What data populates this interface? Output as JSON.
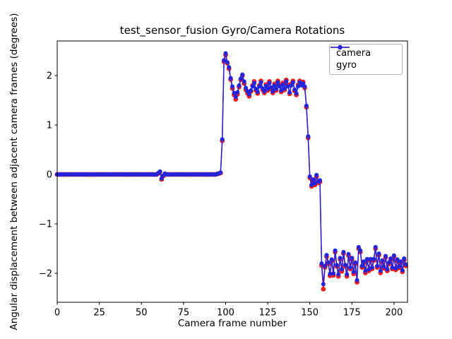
{
  "figure": {
    "title": "test_sensor_fusion Gyro/Camera Rotations",
    "xlabel": "Camera frame number",
    "ylabel": "Angular displacement between adjacent camera frames (degrees)"
  },
  "legend": {
    "items": [
      {
        "label": "camera",
        "color": "#f02020"
      },
      {
        "label": "gyro",
        "color": "#2424dc"
      }
    ]
  },
  "chart_data": {
    "type": "line",
    "title": "test_sensor_fusion Gyro/Camera Rotations",
    "xlabel": "Camera frame number",
    "ylabel": "Angular displacement between adjacent camera frames (degrees)",
    "grid": false,
    "legend_position": "upper right",
    "marker": "circle",
    "x_start": 0,
    "x_step": 1,
    "xlim": [
      0,
      208
    ],
    "ylim": [
      -2.586,
      2.7
    ],
    "xticks": [
      0,
      25,
      50,
      75,
      100,
      125,
      150,
      175,
      200
    ],
    "xtick_labels": [
      "0",
      "25",
      "50",
      "75",
      "100",
      "125",
      "150",
      "175",
      "200"
    ],
    "yticks": [
      -2,
      -1,
      0,
      1,
      2
    ],
    "ytick_labels": [
      "−2",
      "−1",
      "0",
      "1",
      "2"
    ],
    "series": [
      {
        "name": "camera",
        "color": "#f02020",
        "values": [
          0,
          0,
          0,
          0,
          0,
          0,
          0,
          0,
          0,
          0,
          0,
          0,
          0,
          0,
          0,
          0,
          0,
          0,
          0,
          0,
          0,
          0,
          0,
          0,
          0,
          0,
          0,
          0,
          0,
          0,
          0,
          0,
          0,
          0,
          0,
          0,
          0,
          0,
          0,
          0,
          0,
          0,
          0,
          0,
          0,
          0,
          0,
          0,
          0,
          0,
          0,
          0,
          0,
          0,
          0,
          0,
          0,
          0,
          0,
          0,
          0.02,
          0.05,
          -0.1,
          -0.03,
          0.01,
          0,
          0,
          0,
          0,
          0,
          0,
          0,
          0,
          0,
          0,
          0,
          0,
          0,
          0,
          0,
          0,
          0,
          0,
          0,
          0,
          0,
          0,
          0,
          0,
          0,
          0,
          0,
          0,
          0,
          0,
          0.01,
          0.02,
          0.03,
          0.68,
          2.28,
          2.42,
          2.25,
          2.14,
          1.92,
          1.74,
          1.61,
          1.52,
          1.62,
          1.77,
          1.92,
          2.0,
          1.84,
          1.71,
          1.64,
          1.58,
          1.68,
          1.8,
          1.88,
          1.7,
          1.64,
          1.8,
          1.89,
          1.71,
          1.65,
          1.82,
          1.7,
          1.88,
          1.73,
          1.65,
          1.83,
          1.7,
          1.89,
          1.81,
          1.67,
          1.85,
          1.71,
          1.91,
          1.81,
          1.63,
          1.83,
          1.89,
          1.69,
          1.61,
          1.81,
          1.89,
          1.83,
          1.87,
          1.75,
          1.36,
          0.74,
          -0.07,
          -0.24,
          -0.13,
          -0.21,
          -0.04,
          -0.17,
          -0.15,
          -1.84,
          -2.32,
          -1.88,
          -1.66,
          -1.81,
          -2.05,
          -1.75,
          -2.04,
          -1.57,
          -1.86,
          -2.06,
          -1.72,
          -1.96,
          -1.6,
          -1.86,
          -2.06,
          -1.64,
          -1.91,
          -1.72,
          -2.01,
          -1.81,
          -2.18,
          -1.5,
          -1.57,
          -1.88,
          -1.79,
          -1.99,
          -1.74,
          -1.95,
          -1.74,
          -1.91,
          -1.74,
          -1.5,
          -1.88,
          -1.63,
          -1.99,
          -1.77,
          -1.9,
          -1.68,
          -1.95,
          -1.81,
          -1.73,
          -1.91,
          -1.67,
          -1.93,
          -1.75,
          -1.89,
          -1.79,
          -1.97,
          -1.73,
          -1.85
        ]
      },
      {
        "name": "gyro",
        "color": "#2424dc",
        "values": [
          0,
          0,
          0,
          0,
          0,
          0,
          0,
          0,
          0,
          0,
          0,
          0,
          0,
          0,
          0,
          0,
          0,
          0,
          0,
          0,
          0,
          0,
          0,
          0,
          0,
          0,
          0,
          0,
          0,
          0,
          0,
          0,
          0,
          0,
          0,
          0,
          0,
          0,
          0,
          0,
          0,
          0,
          0,
          0,
          0,
          0,
          0,
          0,
          0,
          0,
          0,
          0,
          0,
          0,
          0,
          0,
          0,
          0,
          0,
          0,
          0.03,
          0.06,
          -0.08,
          -0.02,
          0.02,
          0,
          0,
          0,
          0,
          0,
          0,
          0,
          0,
          0,
          0,
          0,
          0,
          0,
          0,
          0,
          0,
          0,
          0,
          0,
          0,
          0,
          0,
          0,
          0,
          0,
          0,
          0,
          0,
          0,
          0,
          0.01,
          0.02,
          0.04,
          0.71,
          2.31,
          2.45,
          2.27,
          2.17,
          1.95,
          1.78,
          1.65,
          1.57,
          1.66,
          1.8,
          1.94,
          2.02,
          1.88,
          1.75,
          1.68,
          1.62,
          1.7,
          1.78,
          1.85,
          1.73,
          1.67,
          1.78,
          1.86,
          1.74,
          1.68,
          1.79,
          1.73,
          1.85,
          1.76,
          1.68,
          1.8,
          1.73,
          1.86,
          1.78,
          1.7,
          1.82,
          1.74,
          1.88,
          1.78,
          1.66,
          1.8,
          1.86,
          1.72,
          1.64,
          1.78,
          1.86,
          1.8,
          1.84,
          1.78,
          1.39,
          0.77,
          -0.04,
          -0.21,
          -0.1,
          -0.18,
          -0.01,
          -0.14,
          -0.12,
          -1.8,
          -2.22,
          -1.85,
          -1.63,
          -1.78,
          -2.01,
          -1.72,
          -2.0,
          -1.54,
          -1.83,
          -2.02,
          -1.69,
          -1.92,
          -1.57,
          -1.83,
          -2.02,
          -1.61,
          -1.88,
          -1.69,
          -1.97,
          -1.78,
          -2.14,
          -1.47,
          -1.54,
          -1.85,
          -1.76,
          -1.95,
          -1.71,
          -1.92,
          -1.71,
          -1.88,
          -1.71,
          -1.47,
          -1.85,
          -1.6,
          -1.95,
          -1.74,
          -1.87,
          -1.65,
          -1.92,
          -1.78,
          -1.7,
          -1.88,
          -1.64,
          -1.9,
          -1.72,
          -1.86,
          -1.76,
          -1.94,
          -1.7,
          -1.82
        ]
      }
    ]
  }
}
